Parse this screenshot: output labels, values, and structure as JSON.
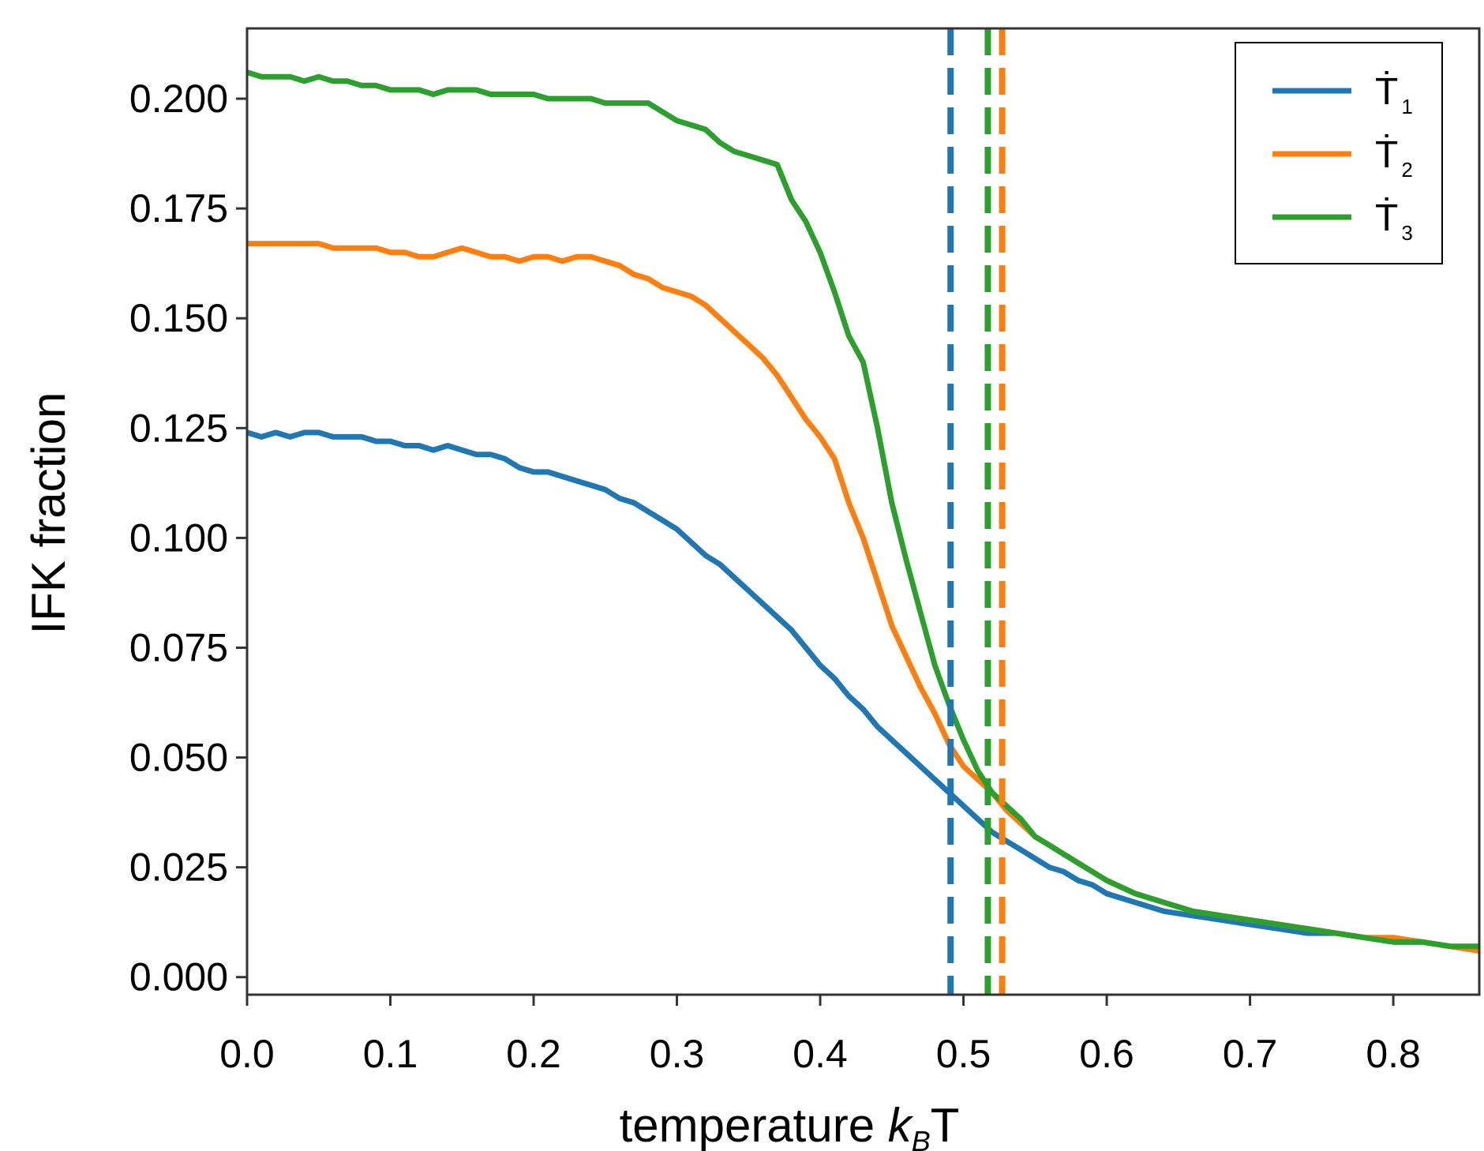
{
  "chart_data": {
    "type": "line",
    "title": "",
    "xlabel_main": "temperature ",
    "xlabel_k": "k",
    "xlabel_sub": "B",
    "xlabel_end": "T",
    "ylabel": "IFK fraction",
    "xlim": [
      0.0,
      0.86
    ],
    "ylim": [
      -0.004,
      0.216
    ],
    "grid": false,
    "legend_position": "top-right",
    "x_ticks": [
      "0.0",
      "0.1",
      "0.2",
      "0.3",
      "0.4",
      "0.5",
      "0.6",
      "0.7",
      "0.8"
    ],
    "y_ticks": [
      "0.000",
      "0.025",
      "0.050",
      "0.075",
      "0.100",
      "0.125",
      "0.150",
      "0.175",
      "0.200"
    ],
    "series": [
      {
        "name": "Ṫ",
        "sub": "1",
        "color": "#1f77b4",
        "critical_x": 0.491,
        "x": [
          0.0,
          0.01,
          0.02,
          0.03,
          0.04,
          0.05,
          0.06,
          0.07,
          0.08,
          0.09,
          0.1,
          0.11,
          0.12,
          0.13,
          0.14,
          0.15,
          0.16,
          0.17,
          0.18,
          0.19,
          0.2,
          0.21,
          0.22,
          0.23,
          0.24,
          0.25,
          0.26,
          0.27,
          0.28,
          0.29,
          0.3,
          0.31,
          0.32,
          0.33,
          0.34,
          0.35,
          0.36,
          0.37,
          0.38,
          0.39,
          0.4,
          0.41,
          0.42,
          0.43,
          0.44,
          0.45,
          0.46,
          0.47,
          0.48,
          0.49,
          0.5,
          0.51,
          0.52,
          0.53,
          0.54,
          0.55,
          0.56,
          0.57,
          0.58,
          0.59,
          0.6,
          0.62,
          0.64,
          0.66,
          0.68,
          0.7,
          0.72,
          0.74,
          0.76,
          0.78,
          0.8,
          0.82,
          0.84,
          0.86
        ],
        "y": [
          0.124,
          0.123,
          0.124,
          0.123,
          0.124,
          0.124,
          0.123,
          0.123,
          0.123,
          0.122,
          0.122,
          0.121,
          0.121,
          0.12,
          0.121,
          0.12,
          0.119,
          0.119,
          0.118,
          0.116,
          0.115,
          0.115,
          0.114,
          0.113,
          0.112,
          0.111,
          0.109,
          0.108,
          0.106,
          0.104,
          0.102,
          0.099,
          0.096,
          0.094,
          0.091,
          0.088,
          0.085,
          0.082,
          0.079,
          0.075,
          0.071,
          0.068,
          0.064,
          0.061,
          0.057,
          0.054,
          0.051,
          0.048,
          0.045,
          0.042,
          0.039,
          0.036,
          0.033,
          0.031,
          0.029,
          0.027,
          0.025,
          0.024,
          0.022,
          0.021,
          0.019,
          0.017,
          0.015,
          0.014,
          0.013,
          0.012,
          0.011,
          0.01,
          0.01,
          0.009,
          0.008,
          0.008,
          0.007,
          0.006
        ]
      },
      {
        "name": "Ṫ",
        "sub": "2",
        "color": "#ff7f0e",
        "critical_x": 0.527,
        "x": [
          0.0,
          0.01,
          0.02,
          0.03,
          0.04,
          0.05,
          0.06,
          0.07,
          0.08,
          0.09,
          0.1,
          0.11,
          0.12,
          0.13,
          0.14,
          0.15,
          0.16,
          0.17,
          0.18,
          0.19,
          0.2,
          0.21,
          0.22,
          0.23,
          0.24,
          0.25,
          0.26,
          0.27,
          0.28,
          0.29,
          0.3,
          0.31,
          0.32,
          0.33,
          0.34,
          0.35,
          0.36,
          0.37,
          0.38,
          0.39,
          0.4,
          0.41,
          0.42,
          0.43,
          0.44,
          0.45,
          0.46,
          0.47,
          0.48,
          0.49,
          0.5,
          0.51,
          0.52,
          0.53,
          0.54,
          0.55,
          0.56,
          0.57,
          0.58,
          0.59,
          0.6,
          0.62,
          0.64,
          0.66,
          0.68,
          0.7,
          0.72,
          0.74,
          0.76,
          0.78,
          0.8,
          0.82,
          0.84,
          0.86
        ],
        "y": [
          0.167,
          0.167,
          0.167,
          0.167,
          0.167,
          0.167,
          0.166,
          0.166,
          0.166,
          0.166,
          0.165,
          0.165,
          0.164,
          0.164,
          0.165,
          0.166,
          0.165,
          0.164,
          0.164,
          0.163,
          0.164,
          0.164,
          0.163,
          0.164,
          0.164,
          0.163,
          0.162,
          0.16,
          0.159,
          0.157,
          0.156,
          0.155,
          0.153,
          0.15,
          0.147,
          0.144,
          0.141,
          0.137,
          0.132,
          0.127,
          0.123,
          0.118,
          0.108,
          0.1,
          0.09,
          0.08,
          0.073,
          0.066,
          0.06,
          0.053,
          0.048,
          0.045,
          0.042,
          0.038,
          0.035,
          0.032,
          0.03,
          0.028,
          0.026,
          0.024,
          0.022,
          0.019,
          0.017,
          0.015,
          0.014,
          0.013,
          0.012,
          0.011,
          0.01,
          0.009,
          0.009,
          0.008,
          0.007,
          0.006
        ]
      },
      {
        "name": "Ṫ",
        "sub": "3",
        "color": "#2ca02c",
        "critical_x": 0.517,
        "x": [
          0.0,
          0.01,
          0.02,
          0.03,
          0.04,
          0.05,
          0.06,
          0.07,
          0.08,
          0.09,
          0.1,
          0.11,
          0.12,
          0.13,
          0.14,
          0.15,
          0.16,
          0.17,
          0.18,
          0.19,
          0.2,
          0.21,
          0.22,
          0.23,
          0.24,
          0.25,
          0.26,
          0.27,
          0.28,
          0.29,
          0.3,
          0.31,
          0.32,
          0.33,
          0.34,
          0.35,
          0.36,
          0.37,
          0.38,
          0.39,
          0.4,
          0.41,
          0.42,
          0.43,
          0.44,
          0.45,
          0.46,
          0.47,
          0.48,
          0.49,
          0.5,
          0.51,
          0.52,
          0.53,
          0.54,
          0.55,
          0.56,
          0.57,
          0.58,
          0.59,
          0.6,
          0.62,
          0.64,
          0.66,
          0.68,
          0.7,
          0.72,
          0.74,
          0.76,
          0.78,
          0.8,
          0.82,
          0.84,
          0.86
        ],
        "y": [
          0.206,
          0.205,
          0.205,
          0.205,
          0.204,
          0.205,
          0.204,
          0.204,
          0.203,
          0.203,
          0.202,
          0.202,
          0.202,
          0.201,
          0.202,
          0.202,
          0.202,
          0.201,
          0.201,
          0.201,
          0.201,
          0.2,
          0.2,
          0.2,
          0.2,
          0.199,
          0.199,
          0.199,
          0.199,
          0.197,
          0.195,
          0.194,
          0.193,
          0.19,
          0.188,
          0.187,
          0.186,
          0.185,
          0.177,
          0.172,
          0.165,
          0.156,
          0.146,
          0.14,
          0.125,
          0.108,
          0.095,
          0.083,
          0.071,
          0.062,
          0.054,
          0.047,
          0.042,
          0.039,
          0.036,
          0.032,
          0.03,
          0.028,
          0.026,
          0.024,
          0.022,
          0.019,
          0.017,
          0.015,
          0.014,
          0.013,
          0.012,
          0.011,
          0.01,
          0.009,
          0.008,
          0.008,
          0.007,
          0.007
        ]
      }
    ]
  }
}
